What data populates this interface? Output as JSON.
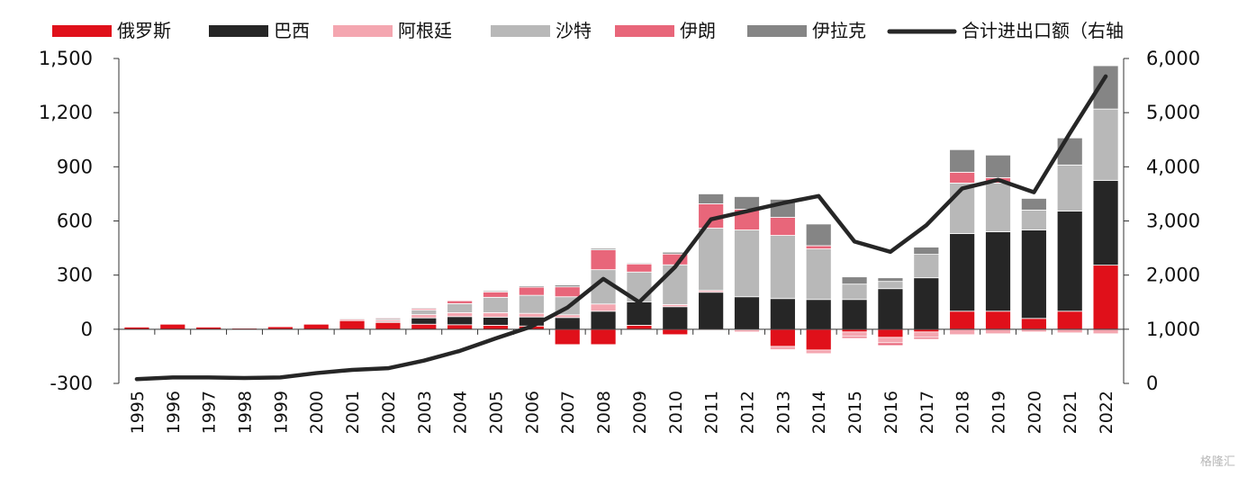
{
  "chart_data": {
    "type": "bar",
    "title": "",
    "xlabel": "",
    "ylabel": "",
    "ylabel_right": "",
    "categories": [
      "1995",
      "1996",
      "1997",
      "1998",
      "1999",
      "2000",
      "2001",
      "2002",
      "2003",
      "2004",
      "2005",
      "2006",
      "2007",
      "2008",
      "2009",
      "2010",
      "2011",
      "2012",
      "2013",
      "2014",
      "2015",
      "2016",
      "2017",
      "2018",
      "2019",
      "2020",
      "2021",
      "2022"
    ],
    "ylim": [
      -300,
      1500
    ],
    "yticks": [
      "-300",
      "0",
      "300",
      "600",
      "900",
      "1,200",
      "1,500"
    ],
    "y2lim": [
      0,
      6000
    ],
    "y2ticks": [
      "0",
      "1,000",
      "2,000",
      "3,000",
      "4,000",
      "5,000",
      "6,000"
    ],
    "grid": false,
    "legend_position": "top",
    "series": [
      {
        "name": "俄罗斯",
        "kind": "bar",
        "color": "#e0101a",
        "values": [
          12,
          28,
          12,
          6,
          14,
          28,
          48,
          38,
          28,
          25,
          22,
          18,
          -85,
          -85,
          22,
          -30,
          -5,
          -3,
          -95,
          -115,
          -15,
          -45,
          -15,
          100,
          100,
          60,
          100,
          355
        ]
      },
      {
        "name": "巴西",
        "kind": "bar",
        "color": "#262626",
        "values": [
          0,
          0,
          0,
          0,
          0,
          0,
          0,
          5,
          35,
          45,
          45,
          50,
          65,
          100,
          130,
          125,
          205,
          180,
          170,
          165,
          165,
          225,
          285,
          430,
          440,
          490,
          555,
          470
        ]
      },
      {
        "name": "阿根廷",
        "kind": "bar",
        "color": "#f4a6b0",
        "values": [
          0,
          0,
          0,
          0,
          0,
          0,
          8,
          10,
          18,
          22,
          25,
          20,
          15,
          40,
          -5,
          12,
          10,
          -12,
          -18,
          -20,
          -25,
          -30,
          -30,
          -30,
          -25,
          -15,
          -20,
          -25
        ]
      },
      {
        "name": "沙特",
        "kind": "bar",
        "color": "#b8b8b8",
        "values": [
          0,
          0,
          0,
          0,
          0,
          0,
          6,
          8,
          25,
          50,
          85,
          100,
          100,
          190,
          165,
          220,
          345,
          370,
          350,
          280,
          85,
          40,
          130,
          280,
          270,
          110,
          255,
          395
        ]
      },
      {
        "name": "伊朗",
        "kind": "bar",
        "color": "#e8667a",
        "values": [
          0,
          0,
          0,
          0,
          0,
          0,
          4,
          5,
          8,
          16,
          30,
          45,
          55,
          110,
          45,
          60,
          135,
          115,
          100,
          18,
          -10,
          -15,
          -10,
          60,
          30,
          0,
          0,
          0
        ]
      },
      {
        "name": "伊拉克",
        "kind": "bar",
        "color": "#858585",
        "values": [
          0,
          0,
          0,
          0,
          0,
          0,
          3,
          4,
          5,
          4,
          6,
          7,
          10,
          8,
          5,
          10,
          55,
          70,
          100,
          120,
          40,
          20,
          40,
          125,
          125,
          65,
          150,
          240
        ]
      },
      {
        "name": "合计进出口额（右轴",
        "kind": "line",
        "axis": "right",
        "color": "#262626",
        "values": [
          80,
          110,
          110,
          100,
          110,
          190,
          250,
          280,
          420,
          600,
          830,
          1050,
          1400,
          1930,
          1500,
          2150,
          3030,
          3180,
          3330,
          3460,
          2620,
          2430,
          2920,
          3600,
          3760,
          3530,
          4620,
          5670
        ]
      }
    ]
  },
  "watermark": {
    "text": "格隆汇"
  }
}
